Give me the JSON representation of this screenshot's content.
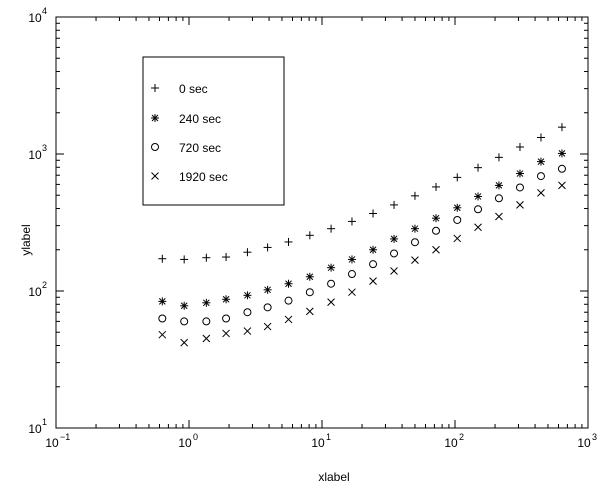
{
  "chart_data": {
    "type": "scatter",
    "xlabel": "xlabel",
    "ylabel": "ylabel",
    "xscale": "log",
    "yscale": "log",
    "xlim": [
      0.1,
      1000
    ],
    "ylim": [
      10,
      10000
    ],
    "grid": false,
    "legend_position": "top-left",
    "x_ticks": [
      {
        "value": 0.1,
        "base": "10",
        "exp": "−1"
      },
      {
        "value": 1,
        "base": "10",
        "exp": "0"
      },
      {
        "value": 10,
        "base": "10",
        "exp": "1"
      },
      {
        "value": 100,
        "base": "10",
        "exp": "2"
      },
      {
        "value": 1000,
        "base": "10",
        "exp": "3"
      }
    ],
    "y_ticks": [
      {
        "value": 10,
        "base": "10",
        "exp": "1"
      },
      {
        "value": 100,
        "base": "10",
        "exp": "2"
      },
      {
        "value": 1000,
        "base": "10",
        "exp": "3"
      },
      {
        "value": 10000,
        "base": "10",
        "exp": "4"
      }
    ],
    "x": [
      0.63,
      0.92,
      1.35,
      1.9,
      2.75,
      3.9,
      5.6,
      8.1,
      11.7,
      16.8,
      24.2,
      34.8,
      50,
      72,
      104,
      149,
      214,
      308,
      443,
      637
    ],
    "series": [
      {
        "name": "0 sec",
        "marker": "plus",
        "values": [
          172,
          170,
          175,
          177,
          192,
          208,
          228,
          255,
          285,
          322,
          368,
          425,
          495,
          575,
          675,
          795,
          945,
          1125,
          1320,
          1570
        ]
      },
      {
        "name": "240 sec",
        "marker": "asterisk",
        "values": [
          84,
          78,
          82,
          87,
          93,
          102,
          113,
          127,
          148,
          170,
          200,
          240,
          285,
          340,
          405,
          490,
          590,
          720,
          880,
          1010
        ]
      },
      {
        "name": "720 sec",
        "marker": "circle",
        "values": [
          63,
          60,
          60,
          63,
          70,
          76,
          85,
          98,
          113,
          133,
          157,
          188,
          227,
          275,
          330,
          395,
          475,
          570,
          690,
          780
        ]
      },
      {
        "name": "1920 sec",
        "marker": "x",
        "values": [
          48,
          42,
          45,
          49,
          51,
          55,
          62,
          71,
          83,
          98,
          118,
          140,
          168,
          200,
          242,
          292,
          350,
          425,
          520,
          590
        ]
      }
    ]
  }
}
